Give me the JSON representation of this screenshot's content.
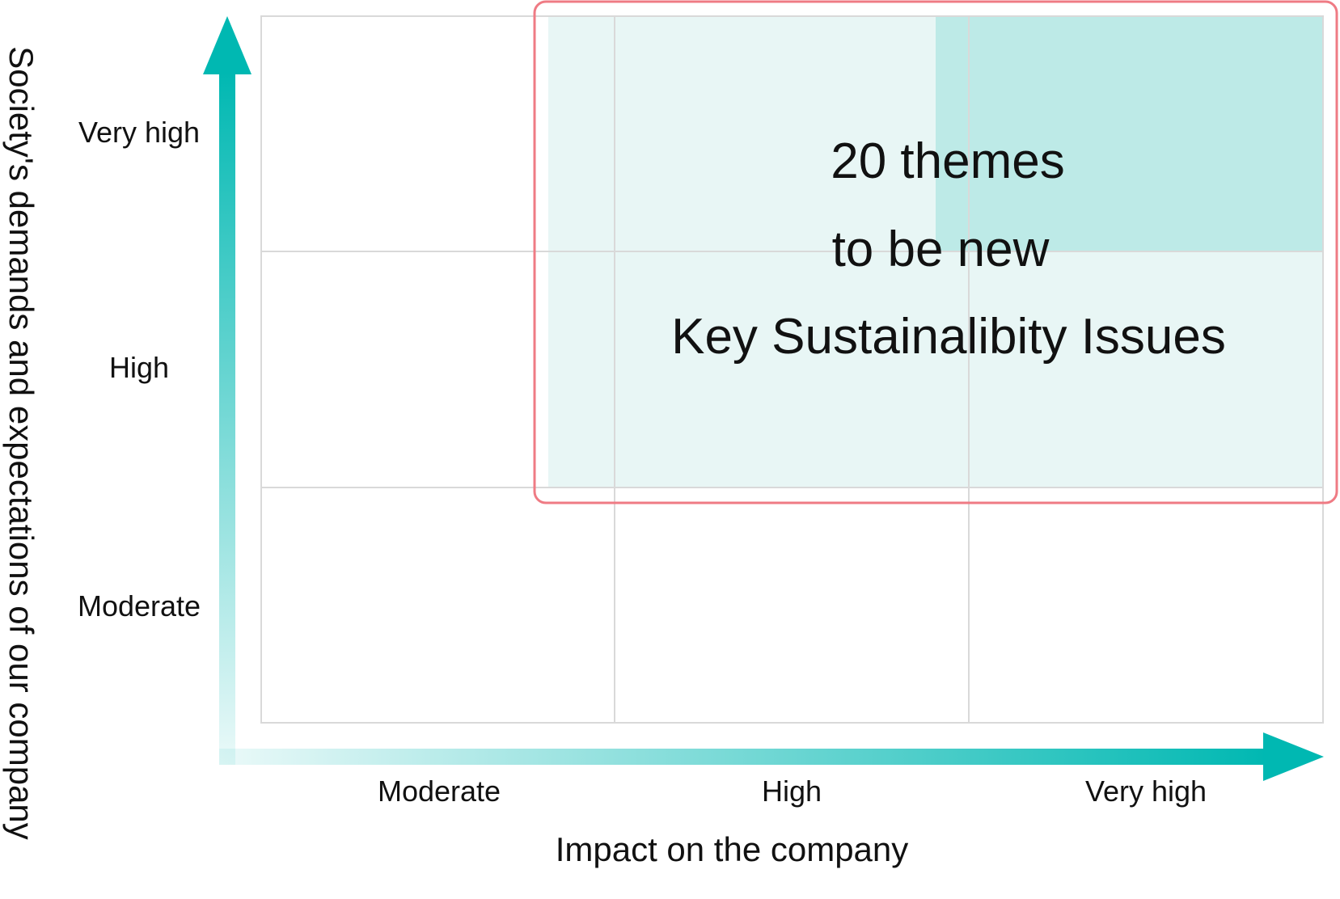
{
  "matrix": {
    "x_axis": {
      "title": "Impact on the company",
      "ticks": [
        "Moderate",
        "High",
        "Very high"
      ]
    },
    "y_axis": {
      "title": "Society's demands and expectations of our company",
      "ticks": [
        "Very high",
        "High",
        "Moderate"
      ]
    },
    "callout": {
      "line1": "20 themes",
      "line2": "to be new",
      "line3": "Key Sustainalibity Issues"
    },
    "colors": {
      "accent": "#00b8b2",
      "region_light": "#e8f6f5",
      "region_strong": "#bdeae7",
      "highlight_border": "#ef7b84",
      "grid": "#d9d9d9"
    }
  }
}
